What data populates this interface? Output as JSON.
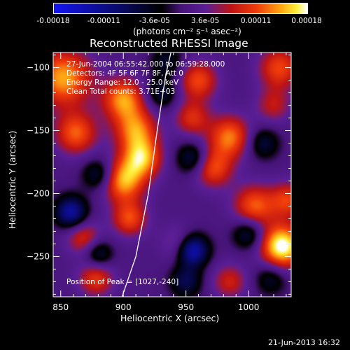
{
  "chart_data": {
    "type": "heatmap",
    "title": "Reconstructed RHESSI Image",
    "xlabel": "Heliocentric X (arcsec)",
    "ylabel": "Heliocentric Y (arcsec)",
    "xlim": [
      844,
      1034
    ],
    "ylim": [
      -282,
      -88
    ],
    "x_ticks": [
      850,
      900,
      950,
      1000
    ],
    "y_ticks": [
      -100,
      -150,
      -200,
      -250
    ],
    "colorbar": {
      "range": [
        -0.00018,
        0.00018
      ],
      "tick_labels": [
        "-0.00018",
        "-0.00011",
        "-3.6e-05",
        "3.6e-05",
        "0.00011",
        "0.00018"
      ],
      "unit_label": "(photons cm⁻² s⁻¹ asec⁻²)",
      "colormap": "blue-black-purple-red-orange-yellow-white"
    },
    "annotations": [
      "27-Jun-2004 06:55:42.000 to 06:59:28.000",
      "Detectors: 4F 5F 6F 7F 8F, Att 0",
      "Energy Range: 12.0 - 25.0 keV",
      "Clean      Total counts: 3.71E+03"
    ],
    "peak_label": "Position of Peak = [1027,-240]",
    "peak": [
      1027,
      -240
    ],
    "limb_curve": [
      [
        899,
        -282
      ],
      [
        910,
        -250
      ],
      [
        920,
        -200
      ],
      [
        927,
        -150
      ],
      [
        934,
        -105
      ],
      [
        938,
        -88
      ]
    ],
    "blobs": [
      {
        "x": 1027,
        "y": -242,
        "v": 1.0,
        "s": 12
      },
      {
        "x": 852,
        "y": -108,
        "v": 0.75,
        "s": 16
      },
      {
        "x": 862,
        "y": -152,
        "v": 0.6,
        "s": 12
      },
      {
        "x": 900,
        "y": -125,
        "v": 0.7,
        "s": 12
      },
      {
        "x": 910,
        "y": -150,
        "v": 0.65,
        "s": 12
      },
      {
        "x": 915,
        "y": -172,
        "v": 0.7,
        "s": 11
      },
      {
        "x": 900,
        "y": -190,
        "v": 0.75,
        "s": 12
      },
      {
        "x": 905,
        "y": -220,
        "v": 0.55,
        "s": 10
      },
      {
        "x": 960,
        "y": -110,
        "v": 0.55,
        "s": 11
      },
      {
        "x": 955,
        "y": -140,
        "v": 0.45,
        "s": 10
      },
      {
        "x": 985,
        "y": -155,
        "v": 0.65,
        "s": 12
      },
      {
        "x": 972,
        "y": -180,
        "v": 0.55,
        "s": 11
      },
      {
        "x": 1005,
        "y": -210,
        "v": 0.6,
        "s": 12
      },
      {
        "x": 1025,
        "y": -100,
        "v": 0.55,
        "s": 12
      },
      {
        "x": 1020,
        "y": -130,
        "v": 0.35,
        "s": 10
      },
      {
        "x": 985,
        "y": -270,
        "v": 0.4,
        "s": 10
      },
      {
        "x": 878,
        "y": -268,
        "v": 0.5,
        "s": 10
      },
      {
        "x": 868,
        "y": -235,
        "v": 0.45,
        "s": 10
      },
      {
        "x": 945,
        "y": -240,
        "v": 0.35,
        "s": 10
      },
      {
        "x": 1032,
        "y": -205,
        "v": 0.5,
        "s": 10
      },
      {
        "x": 858,
        "y": -215,
        "v": -0.75,
        "s": 9
      },
      {
        "x": 880,
        "y": -185,
        "v": -0.45,
        "s": 9
      },
      {
        "x": 935,
        "y": -95,
        "v": -0.35,
        "s": 9
      },
      {
        "x": 930,
        "y": -120,
        "v": -0.4,
        "s": 9
      },
      {
        "x": 955,
        "y": -172,
        "v": -0.45,
        "s": 9
      },
      {
        "x": 955,
        "y": -245,
        "v": -0.9,
        "s": 9
      },
      {
        "x": 1000,
        "y": -232,
        "v": -0.45,
        "s": 9
      },
      {
        "x": 1012,
        "y": -160,
        "v": -0.4,
        "s": 9
      },
      {
        "x": 880,
        "y": -248,
        "v": -0.45,
        "s": 8
      },
      {
        "x": 950,
        "y": -270,
        "v": -0.45,
        "s": 9
      },
      {
        "x": 1018,
        "y": -268,
        "v": -0.35,
        "s": 9
      }
    ]
  },
  "footer": {
    "timestamp": "21-Jun-2013 16:32"
  }
}
